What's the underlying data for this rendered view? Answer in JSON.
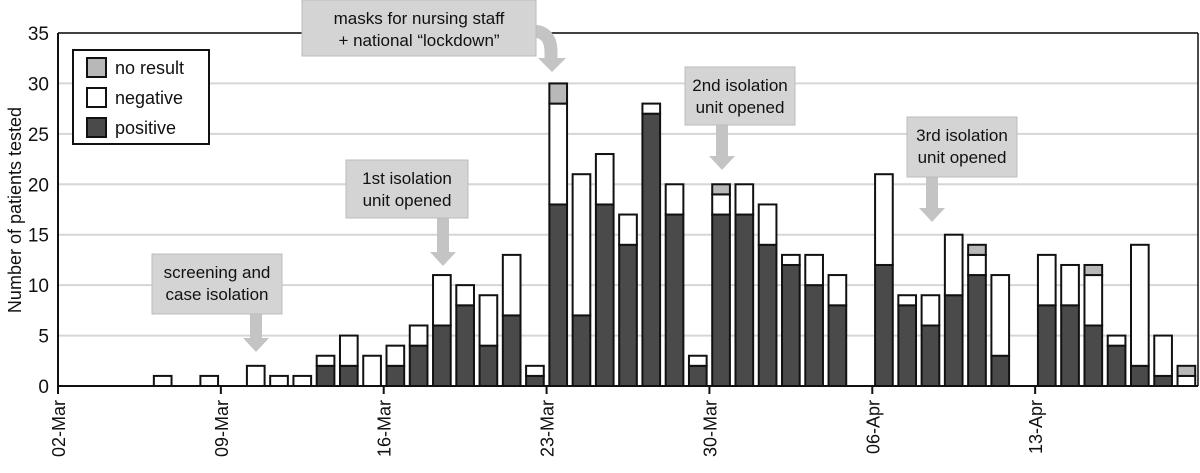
{
  "chart_data": {
    "type": "bar",
    "stacked": true,
    "title": "",
    "xlabel": "",
    "ylabel": "Number of patients tested",
    "ylim": [
      0,
      35
    ],
    "yticks": [
      0,
      5,
      10,
      15,
      20,
      25,
      30,
      35
    ],
    "grid": true,
    "x_start_date": "02-Mar",
    "x_tick_labels": [
      "02-Mar",
      "09-Mar",
      "16-Mar",
      "23-Mar",
      "30-Mar",
      "06-Apr",
      "13-Apr"
    ],
    "legend": {
      "placement": "top-left",
      "entries": [
        {
          "name": "no result",
          "color": "#b8b8b8"
        },
        {
          "name": "negative",
          "color": "#ffffff"
        },
        {
          "name": "positive",
          "color": "#4a4a4a"
        }
      ]
    },
    "categories": [
      "02-Mar",
      "03-Mar",
      "04-Mar",
      "05-Mar",
      "06-Mar",
      "07-Mar",
      "08-Mar",
      "09-Mar",
      "10-Mar",
      "11-Mar",
      "12-Mar",
      "13-Mar",
      "14-Mar",
      "15-Mar",
      "16-Mar",
      "17-Mar",
      "18-Mar",
      "19-Mar",
      "20-Mar",
      "21-Mar",
      "22-Mar",
      "23-Mar",
      "24-Mar",
      "25-Mar",
      "26-Mar",
      "27-Mar",
      "28-Mar",
      "29-Mar",
      "30-Mar",
      "31-Mar",
      "01-Apr",
      "02-Apr",
      "03-Apr",
      "04-Apr",
      "05-Apr",
      "06-Apr",
      "07-Apr",
      "08-Apr",
      "09-Apr",
      "10-Apr",
      "11-Apr",
      "12-Apr",
      "13-Apr",
      "14-Apr",
      "15-Apr",
      "16-Apr",
      "17-Apr",
      "18-Apr",
      "19-Apr"
    ],
    "series": [
      {
        "name": "positive",
        "values": [
          0,
          0,
          0,
          0,
          0,
          0,
          0,
          0,
          0,
          0,
          0,
          2,
          2,
          0,
          2,
          4,
          6,
          8,
          4,
          7,
          1,
          18,
          7,
          18,
          14,
          27,
          17,
          2,
          17,
          17,
          14,
          12,
          10,
          8,
          0,
          12,
          8,
          6,
          9,
          11,
          3,
          0,
          8,
          8,
          6,
          4,
          2,
          1,
          0
        ]
      },
      {
        "name": "negative",
        "values": [
          0,
          0,
          0,
          0,
          1,
          0,
          1,
          0,
          2,
          1,
          1,
          1,
          3,
          3,
          2,
          2,
          5,
          2,
          5,
          6,
          1,
          10,
          14,
          5,
          3,
          1,
          3,
          1,
          2,
          3,
          4,
          1,
          3,
          3,
          0,
          9,
          1,
          3,
          6,
          2,
          8,
          0,
          5,
          4,
          5,
          1,
          12,
          4,
          1
        ]
      },
      {
        "name": "no result",
        "values": [
          0,
          0,
          0,
          0,
          0,
          0,
          0,
          0,
          0,
          0,
          0,
          0,
          0,
          0,
          0,
          0,
          0,
          0,
          0,
          0,
          0,
          2,
          0,
          0,
          0,
          0,
          0,
          0,
          1,
          0,
          0,
          0,
          0,
          0,
          0,
          0,
          0,
          0,
          0,
          1,
          0,
          0,
          0,
          0,
          1,
          0,
          0,
          0,
          1
        ]
      }
    ],
    "annotations": [
      {
        "text": [
          "screening and",
          "case isolation"
        ],
        "points_to": "10-Mar"
      },
      {
        "text": [
          "1st isolation",
          "unit opened"
        ],
        "points_to": "18-Mar"
      },
      {
        "text": [
          "masks for nursing staff",
          "+ national “lockdown”"
        ],
        "points_to": "23-Mar"
      },
      {
        "text": [
          "2nd isolation",
          "unit opened"
        ],
        "points_to": "30-Mar"
      },
      {
        "text": [
          "3rd isolation",
          "unit opened"
        ],
        "points_to": "08-Apr"
      }
    ]
  }
}
